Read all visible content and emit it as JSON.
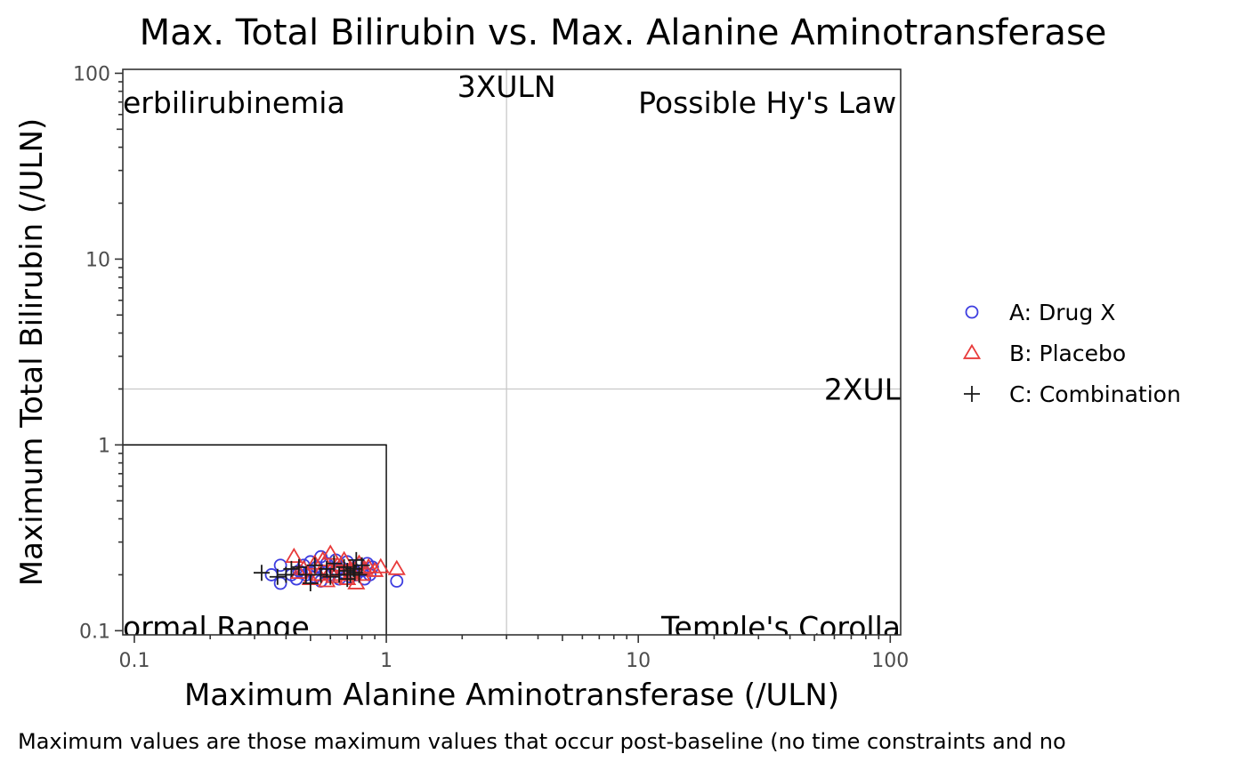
{
  "chart_data": {
    "type": "scatter",
    "title": "Max. Total Bilirubin vs. Max. Alanine Aminotransferase",
    "xlabel": "Maximum Alanine Aminotransferase (/ULN)",
    "ylabel": "Maximum Total Bilirubin (/ULN)",
    "caption": "Maximum values are those maximum values that occur post-baseline (no time constraints and no",
    "xscale": "log",
    "yscale": "log",
    "xlim": [
      0.09,
      110
    ],
    "ylim": [
      0.095,
      105
    ],
    "xticks": [
      {
        "value": 0.1,
        "label": "0.1"
      },
      {
        "value": 1,
        "label": "1"
      },
      {
        "value": 10,
        "label": "10"
      },
      {
        "value": 100,
        "label": "100"
      }
    ],
    "yticks": [
      {
        "value": 0.1,
        "label": "0.1"
      },
      {
        "value": 1,
        "label": "1"
      },
      {
        "value": 10,
        "label": "10"
      },
      {
        "value": 100,
        "label": "100"
      }
    ],
    "reference_lines": {
      "x": 3,
      "y": 2,
      "normal_range_box": {
        "x": 1,
        "y": 1
      }
    },
    "annotations": [
      {
        "text": "erbilirubinemia",
        "x": 0.09,
        "y": 70,
        "anchor": "start"
      },
      {
        "text": "3XULN",
        "x": 3,
        "y": 85,
        "anchor": "middle"
      },
      {
        "text": "Possible Hy's Law R",
        "x": 10,
        "y": 70,
        "anchor": "start"
      },
      {
        "text": "2XUL",
        "x": 110,
        "y": 2,
        "anchor": "end"
      },
      {
        "text": "ormal Range",
        "x": 0.09,
        "y": 0.105,
        "anchor": "start"
      },
      {
        "text": "Temple's Corolla",
        "x": 110,
        "y": 0.105,
        "anchor": "end"
      }
    ],
    "legend_position": "right",
    "series": [
      {
        "name": "A: Drug X",
        "marker": "circle",
        "color": "#3d3de0",
        "points": [
          [
            0.35,
            0.2
          ],
          [
            0.38,
            0.18
          ],
          [
            0.38,
            0.225
          ],
          [
            0.42,
            0.2
          ],
          [
            0.44,
            0.19
          ],
          [
            0.45,
            0.21
          ],
          [
            0.47,
            0.225
          ],
          [
            0.48,
            0.2
          ],
          [
            0.5,
            0.235
          ],
          [
            0.5,
            0.21
          ],
          [
            0.52,
            0.195
          ],
          [
            0.53,
            0.22
          ],
          [
            0.55,
            0.25
          ],
          [
            0.55,
            0.185
          ],
          [
            0.57,
            0.205
          ],
          [
            0.58,
            0.23
          ],
          [
            0.6,
            0.2
          ],
          [
            0.62,
            0.215
          ],
          [
            0.63,
            0.24
          ],
          [
            0.65,
            0.19
          ],
          [
            0.66,
            0.22
          ],
          [
            0.68,
            0.205
          ],
          [
            0.7,
            0.235
          ],
          [
            0.72,
            0.195
          ],
          [
            0.74,
            0.215
          ],
          [
            0.76,
            0.2
          ],
          [
            0.78,
            0.225
          ],
          [
            0.8,
            0.21
          ],
          [
            0.82,
            0.19
          ],
          [
            0.84,
            0.23
          ],
          [
            0.86,
            0.2
          ],
          [
            0.88,
            0.22
          ],
          [
            1.1,
            0.185
          ],
          [
            0.46,
            0.205
          ],
          [
            0.64,
            0.21
          ]
        ]
      },
      {
        "name": "B: Placebo",
        "marker": "triangle",
        "color": "#e83b3b",
        "points": [
          [
            0.43,
            0.25
          ],
          [
            0.45,
            0.205
          ],
          [
            0.47,
            0.215
          ],
          [
            0.5,
            0.19
          ],
          [
            0.52,
            0.23
          ],
          [
            0.54,
            0.2
          ],
          [
            0.56,
            0.24
          ],
          [
            0.58,
            0.185
          ],
          [
            0.6,
            0.26
          ],
          [
            0.6,
            0.21
          ],
          [
            0.62,
            0.195
          ],
          [
            0.64,
            0.225
          ],
          [
            0.66,
            0.2
          ],
          [
            0.68,
            0.24
          ],
          [
            0.7,
            0.19
          ],
          [
            0.72,
            0.215
          ],
          [
            0.74,
            0.2
          ],
          [
            0.76,
            0.18
          ],
          [
            0.78,
            0.23
          ],
          [
            0.8,
            0.2
          ],
          [
            0.82,
            0.215
          ],
          [
            0.85,
            0.22
          ],
          [
            0.9,
            0.21
          ],
          [
            0.95,
            0.22
          ],
          [
            1.1,
            0.215
          ],
          [
            0.66,
            0.225
          ],
          [
            0.73,
            0.205
          ]
        ]
      },
      {
        "name": "C: Combination",
        "marker": "plus",
        "color": "#1a1a1a",
        "points": [
          [
            0.32,
            0.205
          ],
          [
            0.37,
            0.195
          ],
          [
            0.4,
            0.2
          ],
          [
            0.42,
            0.215
          ],
          [
            0.45,
            0.22
          ],
          [
            0.48,
            0.2
          ],
          [
            0.5,
            0.18
          ],
          [
            0.52,
            0.225
          ],
          [
            0.55,
            0.2
          ],
          [
            0.58,
            0.215
          ],
          [
            0.6,
            0.195
          ],
          [
            0.62,
            0.23
          ],
          [
            0.65,
            0.2
          ],
          [
            0.68,
            0.22
          ],
          [
            0.7,
            0.19
          ],
          [
            0.72,
            0.2
          ],
          [
            0.74,
            0.215
          ],
          [
            0.76,
            0.24
          ],
          [
            0.78,
            0.2
          ],
          [
            0.8,
            0.225
          ],
          [
            0.75,
            0.205
          ],
          [
            0.7,
            0.21
          ]
        ]
      }
    ]
  }
}
